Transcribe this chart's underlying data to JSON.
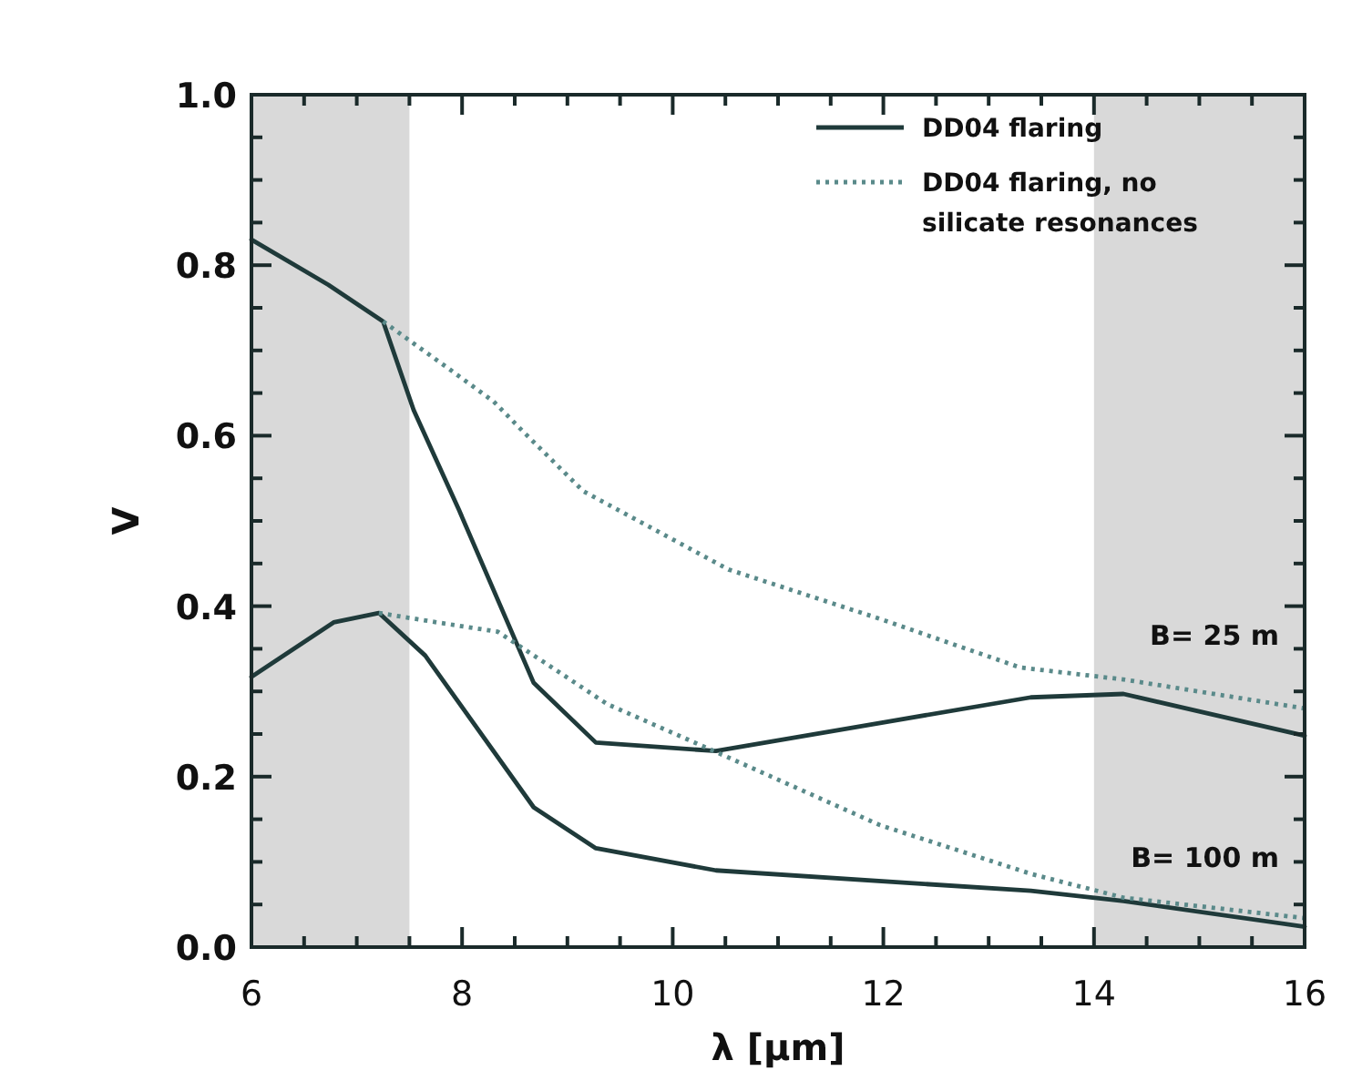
{
  "chart_data": {
    "type": "line",
    "xlabel": "λ [μm]",
    "ylabel": "V",
    "xlim": [
      6,
      16
    ],
    "ylim": [
      0,
      1
    ],
    "xticks": [
      6,
      {
        "value": 6.5,
        "label": null
      },
      {
        "value": 7,
        "label": null
      },
      {
        "value": 7.5,
        "label": null
      },
      8,
      {
        "value": 8.5,
        "label": null
      },
      {
        "value": 9,
        "label": null
      },
      {
        "value": 9.5,
        "label": null
      },
      10,
      {
        "value": 10.5,
        "label": null
      },
      {
        "value": 11,
        "label": null
      },
      {
        "value": 11.5,
        "label": null
      },
      12,
      {
        "value": 12.5,
        "label": null
      },
      {
        "value": 13,
        "label": null
      },
      {
        "value": 13.5,
        "label": null
      },
      14,
      {
        "value": 14.5,
        "label": null
      },
      {
        "value": 15,
        "label": null
      },
      {
        "value": 15.5,
        "label": null
      },
      16
    ],
    "yticks": [
      {
        "value": 0,
        "label": "0.0"
      },
      {
        "value": 0.05,
        "label": null
      },
      {
        "value": 0.1,
        "label": null
      },
      {
        "value": 0.15,
        "label": null
      },
      0.2,
      {
        "value": 0.25,
        "label": null
      },
      {
        "value": 0.3,
        "label": null
      },
      {
        "value": 0.35,
        "label": null
      },
      0.4,
      {
        "value": 0.45,
        "label": null
      },
      {
        "value": 0.5,
        "label": null
      },
      {
        "value": 0.55,
        "label": null
      },
      0.6,
      {
        "value": 0.65,
        "label": null
      },
      {
        "value": 0.7,
        "label": null
      },
      {
        "value": 0.75,
        "label": null
      },
      0.8,
      {
        "value": 0.85,
        "label": null
      },
      {
        "value": 0.9,
        "label": null
      },
      {
        "value": 0.95,
        "label": null
      },
      {
        "value": 1,
        "label": "1.0"
      }
    ],
    "grid": false,
    "legend": "top right",
    "marker": "none",
    "bands": [
      {
        "axis": "x",
        "from": 6,
        "to": 7.5,
        "color": "#d9d9d9"
      },
      {
        "axis": "x",
        "from": 14,
        "to": 16,
        "color": "#d9d9d9"
      }
    ],
    "annotations": [
      "B= 25 m",
      "B= 100 m"
    ],
    "series": [
      {
        "name": "DD04 flaring",
        "color": "#1f3a3a",
        "line_style": "solid",
        "x": [
          6,
          6.73,
          7.25,
          7.54,
          7.97,
          8.68,
          9.27,
          10.41,
          11.97,
          13.4,
          14.28,
          16
        ],
        "values": [
          0.83,
          0.777,
          0.734,
          0.63,
          0.513,
          0.31,
          0.24,
          0.23,
          0.263,
          0.293,
          0.297,
          0.248
        ]
      },
      {
        "name": "DD04 flaring, no silicate resonances",
        "color": "#5a8a8a",
        "line_style": "dotted",
        "x": [
          7.25,
          7.88,
          8.3,
          8.57,
          9.15,
          10.53,
          11.97,
          13.3,
          14.28,
          16
        ],
        "values": [
          0.734,
          0.678,
          0.64,
          0.606,
          0.535,
          0.443,
          0.385,
          0.328,
          0.314,
          0.28
        ]
      },
      {
        "color": "#1f3a3a",
        "line_style": "solid",
        "x": [
          6,
          6.78,
          7.21,
          7.65,
          8.68,
          9.27,
          10.41,
          13.4,
          14.28,
          16
        ],
        "values": [
          0.317,
          0.381,
          0.392,
          0.342,
          0.164,
          0.116,
          0.09,
          0.066,
          0.054,
          0.024
        ]
      },
      {
        "color": "#5a8a8a",
        "line_style": "dotted",
        "x": [
          7.21,
          7.76,
          8.34,
          9.38,
          10.41,
          11.97,
          13.4,
          14.28,
          16
        ],
        "values": [
          0.392,
          0.381,
          0.37,
          0.285,
          0.229,
          0.143,
          0.086,
          0.058,
          0.034
        ]
      }
    ]
  }
}
